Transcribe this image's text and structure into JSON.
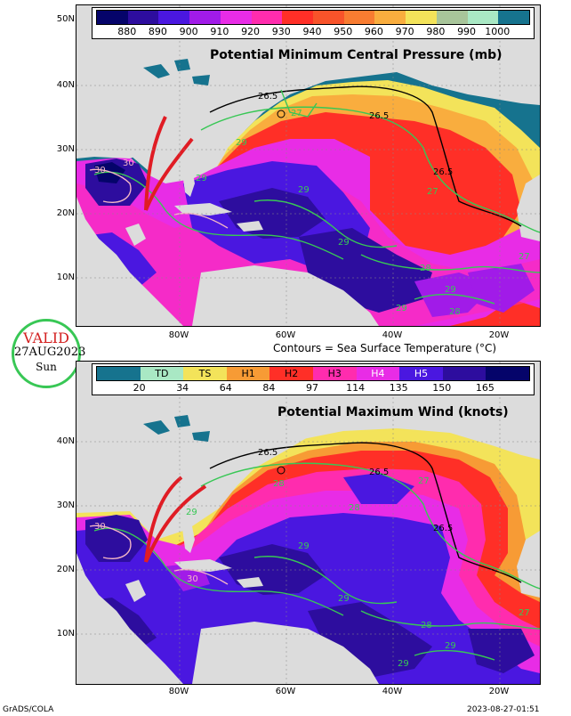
{
  "top_panel": {
    "title": "Potential Minimum Central Pressure (mb)",
    "legend_values": [
      "880",
      "890",
      "900",
      "910",
      "920",
      "930",
      "940",
      "950",
      "960",
      "970",
      "980",
      "990",
      "1000"
    ],
    "legend_colors": [
      "#05046a",
      "#2d0d9e",
      "#4a17e0",
      "#a11be8",
      "#e82ce6",
      "#ff2cae",
      "#ff2f27",
      "#f8532a",
      "#f87c31",
      "#f9ad3e",
      "#f3e35a",
      "#a8c59a",
      "#a9e8c4",
      "#16738e"
    ],
    "contour_labels": [
      "26.5",
      "26.5",
      "26.5",
      "27",
      "29",
      "29",
      "29",
      "29",
      "29",
      "30",
      "30",
      "28",
      "27",
      "28",
      "29",
      "27"
    ]
  },
  "caption": "Contours = Sea Surface Temperature (°C)",
  "valid_badge": {
    "line1": "VALID",
    "line2": "27AUG2023",
    "line3": "Sun"
  },
  "bottom_panel": {
    "title": "Potential Maximum Wind (knots)",
    "legend_categories": [
      "TD",
      "TS",
      "H1",
      "H2",
      "H3",
      "H4",
      "H5"
    ],
    "legend_values": [
      "20",
      "34",
      "64",
      "84",
      "97",
      "114",
      "135",
      "150",
      "165"
    ],
    "legend_colors": [
      "#16738e",
      "#a9e8c4",
      "#f3e35a",
      "#f79b35",
      "#ff2f27",
      "#ff2cae",
      "#e82ce6",
      "#4a17e0",
      "#2d0d9e",
      "#05046a"
    ],
    "contour_labels": [
      "26.5",
      "26.5",
      "26.5",
      "28",
      "27",
      "28",
      "29",
      "29",
      "29",
      "30",
      "30",
      "29",
      "28",
      "29",
      "27"
    ]
  },
  "lat_labels": [
    "50N",
    "40N",
    "30N",
    "20N",
    "10N"
  ],
  "lon_labels": [
    "80W",
    "60W",
    "40W",
    "20W"
  ],
  "footer": {
    "left": "GrADS/COLA",
    "right": "2023-08-27-01:51"
  }
}
